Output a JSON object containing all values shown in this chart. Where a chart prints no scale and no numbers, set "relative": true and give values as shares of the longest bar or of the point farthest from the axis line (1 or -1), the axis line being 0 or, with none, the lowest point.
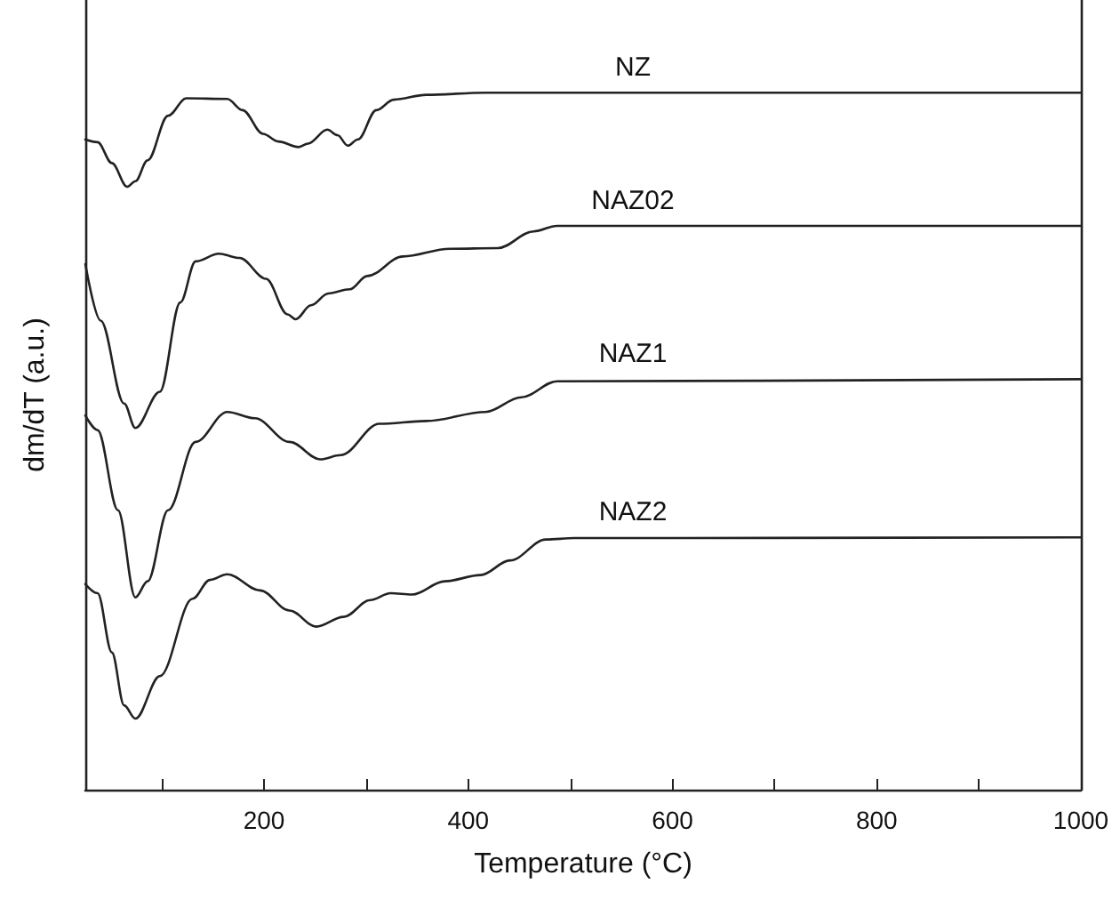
{
  "chart_data": {
    "type": "line",
    "xlabel": "Temperature (°C)",
    "ylabel": "dm/dT (a.u.)",
    "relative": true,
    "marker": "none",
    "line_style": "solid",
    "grid": false,
    "legend": false,
    "xlim": [
      25,
      1000
    ],
    "xticks": [
      {
        "value": 100,
        "label": null
      },
      200,
      {
        "value": 300,
        "label": null
      },
      400,
      {
        "value": 500,
        "label": null
      },
      600,
      {
        "value": 700,
        "label": null
      },
      800,
      {
        "value": 900,
        "label": null
      },
      1000
    ],
    "series": [
      {
        "name": "NZ",
        "color": "#222222",
        "x": [
          25,
          37,
          51,
          66,
          74,
          86,
          106,
          124,
          164,
          179,
          199,
          214,
          234,
          243,
          262,
          272,
          282,
          292,
          310,
          327,
          359,
          417,
          1000
        ],
        "values": [
          0.933,
          0.929,
          0.899,
          0.865,
          0.873,
          0.903,
          0.967,
          0.992,
          0.991,
          0.975,
          0.941,
          0.93,
          0.922,
          0.927,
          0.947,
          0.939,
          0.924,
          0.933,
          0.975,
          0.99,
          0.997,
          1,
          1
        ]
      },
      {
        "name": "NAZ02",
        "color": "#222222",
        "x": [
          25,
          40,
          63,
          74,
          98,
          118,
          133,
          156,
          176,
          202,
          223,
          231,
          246,
          263,
          284,
          301,
          336,
          382,
          429,
          464,
          487,
          1000
        ],
        "values": [
          0.754,
          0.673,
          0.554,
          0.519,
          0.571,
          0.699,
          0.758,
          0.769,
          0.763,
          0.733,
          0.682,
          0.675,
          0.695,
          0.712,
          0.718,
          0.737,
          0.765,
          0.776,
          0.777,
          0.801,
          0.809,
          0.809
        ]
      },
      {
        "name": "NAZ1",
        "color": "#222222",
        "x": [
          25,
          37,
          57,
          74,
          86,
          106,
          133,
          164,
          191,
          225,
          255,
          275,
          313,
          359,
          417,
          452,
          487,
          1000
        ],
        "values": [
          0.537,
          0.516,
          0.401,
          0.276,
          0.299,
          0.401,
          0.499,
          0.542,
          0.533,
          0.499,
          0.474,
          0.48,
          0.525,
          0.529,
          0.542,
          0.563,
          0.586,
          0.589
        ]
      },
      {
        "name": "NAZ2",
        "color": "#222222",
        "x": [
          25,
          37,
          51,
          63,
          74,
          98,
          130,
          147,
          164,
          196,
          225,
          251,
          278,
          304,
          324,
          345,
          377,
          412,
          441,
          476,
          504,
          1000
        ],
        "values": [
          0.295,
          0.282,
          0.197,
          0.121,
          0.102,
          0.163,
          0.274,
          0.301,
          0.309,
          0.286,
          0.257,
          0.234,
          0.248,
          0.272,
          0.282,
          0.28,
          0.299,
          0.308,
          0.329,
          0.359,
          0.361,
          0.362
        ]
      }
    ]
  }
}
